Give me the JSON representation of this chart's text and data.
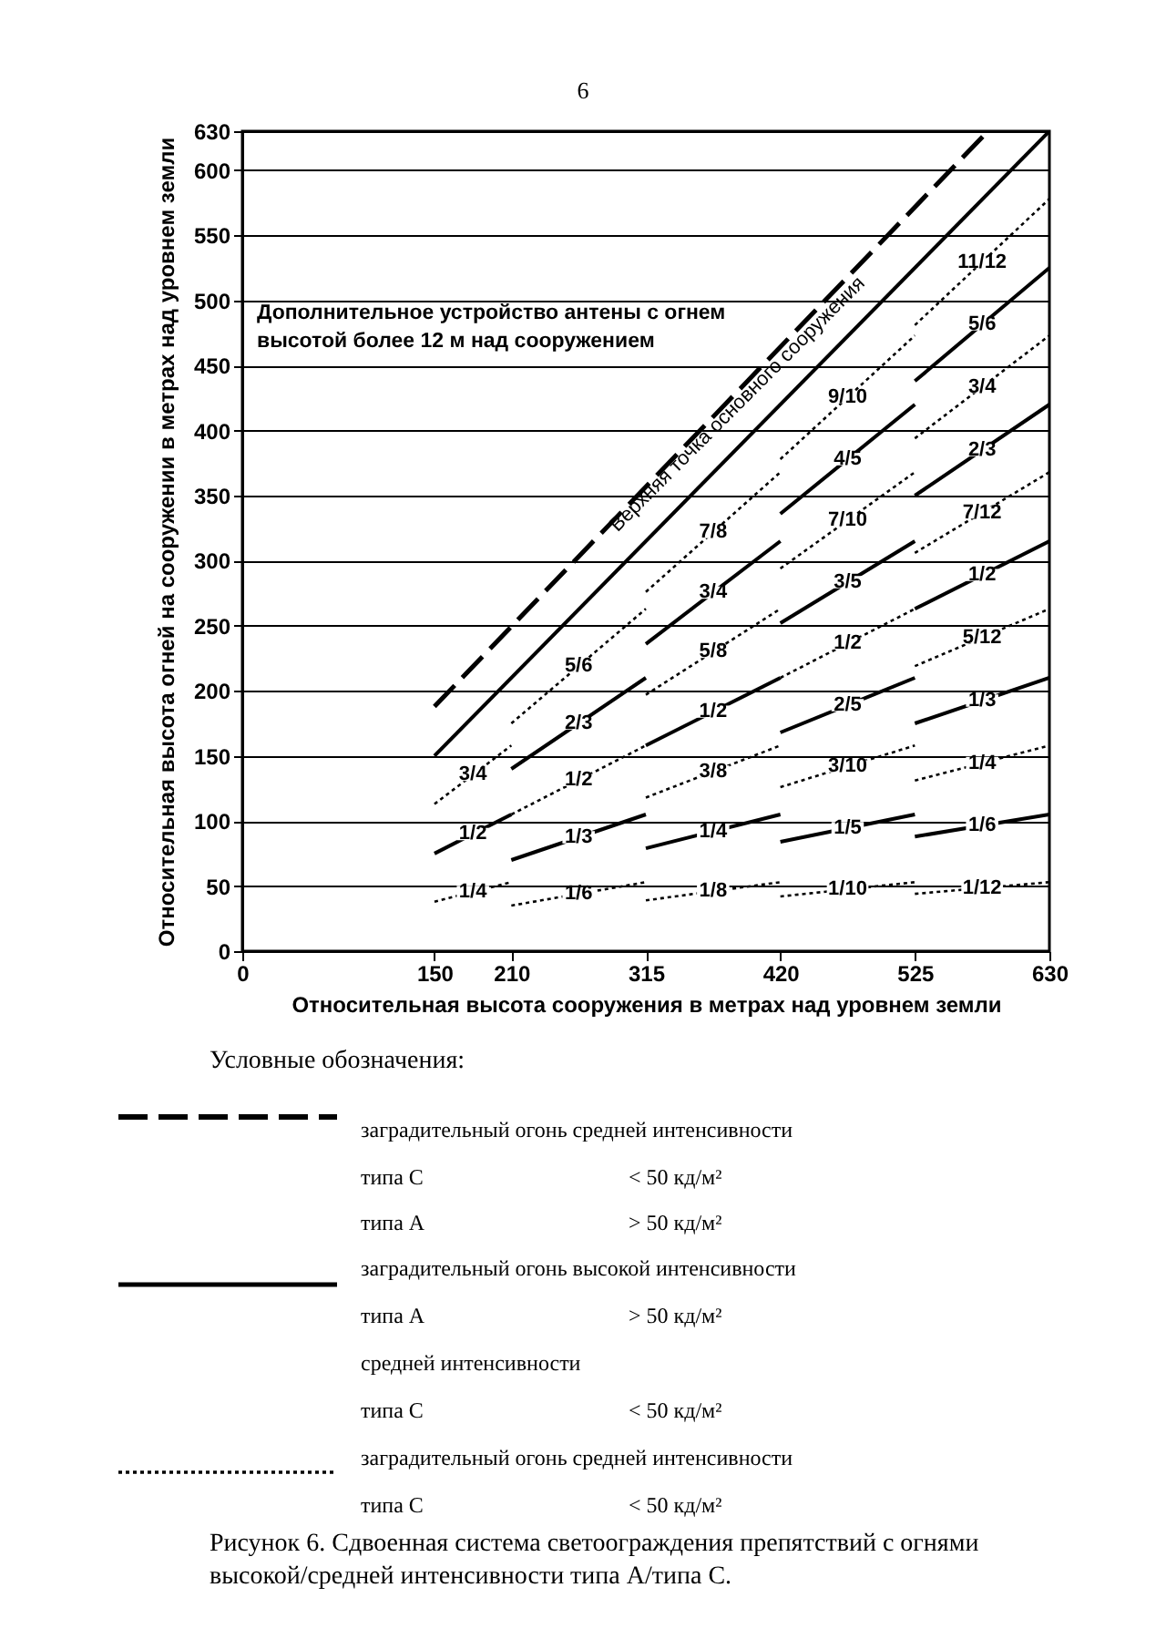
{
  "chart_data": {
    "type": "line",
    "xlabel": "Относительная высота сооружения в метрах над уровнем земли",
    "ylabel": "Относительная высота огней на сооружении в метрах над уровнем земли",
    "xlim": [
      0,
      630
    ],
    "ylim": [
      0,
      630
    ],
    "xticks": [
      0,
      150,
      210,
      315,
      420,
      525,
      630
    ],
    "yticks": [
      0,
      50,
      100,
      150,
      200,
      250,
      300,
      350,
      400,
      450,
      500,
      550,
      600,
      630
    ],
    "grid": "y",
    "legend": "bottom",
    "series": [
      {
        "color": "#000000",
        "line_style": "dashed",
        "x": [
          150,
          582
        ],
        "values": [
          188,
          630
        ]
      },
      {
        "color": "#000000",
        "line_style": "solid",
        "x": [
          150,
          630
        ],
        "values": [
          150,
          630
        ]
      },
      {
        "name": "3/4",
        "color": "#000000",
        "line_style": "dotted",
        "x": [
          150,
          210
        ],
        "values": [
          113,
          158
        ]
      },
      {
        "name": "1/2",
        "color": "#000000",
        "line_style": "solid",
        "x": [
          150,
          210
        ],
        "values": [
          75,
          105
        ]
      },
      {
        "name": "1/4",
        "color": "#000000",
        "line_style": "dotted",
        "x": [
          150,
          210
        ],
        "values": [
          38,
          53
        ]
      },
      {
        "name": "5/6",
        "color": "#000000",
        "line_style": "dotted",
        "x": [
          210,
          315
        ],
        "values": [
          175,
          263
        ]
      },
      {
        "name": "2/3",
        "color": "#000000",
        "line_style": "solid",
        "x": [
          210,
          315
        ],
        "values": [
          140,
          210
        ]
      },
      {
        "name": "1/2",
        "color": "#000000",
        "line_style": "dotted",
        "x": [
          210,
          315
        ],
        "values": [
          105,
          158
        ]
      },
      {
        "name": "1/3",
        "color": "#000000",
        "line_style": "solid",
        "x": [
          210,
          315
        ],
        "values": [
          70,
          105
        ]
      },
      {
        "name": "1/6",
        "color": "#000000",
        "line_style": "dotted",
        "x": [
          210,
          315
        ],
        "values": [
          35,
          53
        ]
      },
      {
        "name": "7/8",
        "color": "#000000",
        "line_style": "dotted",
        "x": [
          315,
          420
        ],
        "values": [
          276,
          368
        ]
      },
      {
        "name": "3/4",
        "color": "#000000",
        "line_style": "solid",
        "x": [
          315,
          420
        ],
        "values": [
          236,
          315
        ]
      },
      {
        "name": "5/8",
        "color": "#000000",
        "line_style": "dotted",
        "x": [
          315,
          420
        ],
        "values": [
          197,
          263
        ]
      },
      {
        "name": "1/2",
        "color": "#000000",
        "line_style": "solid",
        "x": [
          315,
          420
        ],
        "values": [
          158,
          210
        ]
      },
      {
        "name": "3/8",
        "color": "#000000",
        "line_style": "dotted",
        "x": [
          315,
          420
        ],
        "values": [
          118,
          158
        ]
      },
      {
        "name": "1/4",
        "color": "#000000",
        "line_style": "solid",
        "x": [
          315,
          420
        ],
        "values": [
          79,
          105
        ]
      },
      {
        "name": "1/8",
        "color": "#000000",
        "line_style": "dotted",
        "x": [
          315,
          420
        ],
        "values": [
          39,
          53
        ]
      },
      {
        "name": "9/10",
        "color": "#000000",
        "line_style": "dotted",
        "x": [
          420,
          525
        ],
        "values": [
          378,
          473
        ]
      },
      {
        "name": "4/5",
        "color": "#000000",
        "line_style": "solid",
        "x": [
          420,
          525
        ],
        "values": [
          336,
          420
        ]
      },
      {
        "name": "7/10",
        "color": "#000000",
        "line_style": "dotted",
        "x": [
          420,
          525
        ],
        "values": [
          294,
          368
        ]
      },
      {
        "name": "3/5",
        "color": "#000000",
        "line_style": "solid",
        "x": [
          420,
          525
        ],
        "values": [
          252,
          315
        ]
      },
      {
        "name": "1/2",
        "color": "#000000",
        "line_style": "dotted",
        "x": [
          420,
          525
        ],
        "values": [
          210,
          263
        ]
      },
      {
        "name": "2/5",
        "color": "#000000",
        "line_style": "solid",
        "x": [
          420,
          525
        ],
        "values": [
          168,
          210
        ]
      },
      {
        "name": "3/10",
        "color": "#000000",
        "line_style": "dotted",
        "x": [
          420,
          525
        ],
        "values": [
          126,
          158
        ]
      },
      {
        "name": "1/5",
        "color": "#000000",
        "line_style": "solid",
        "x": [
          420,
          525
        ],
        "values": [
          84,
          105
        ]
      },
      {
        "name": "1/10",
        "color": "#000000",
        "line_style": "dotted",
        "x": [
          420,
          525
        ],
        "values": [
          42,
          53
        ]
      },
      {
        "name": "11/12",
        "color": "#000000",
        "line_style": "dotted",
        "x": [
          525,
          630
        ],
        "values": [
          481,
          578
        ]
      },
      {
        "name": "5/6",
        "color": "#000000",
        "line_style": "solid",
        "x": [
          525,
          630
        ],
        "values": [
          438,
          525
        ]
      },
      {
        "name": "3/4",
        "color": "#000000",
        "line_style": "dotted",
        "x": [
          525,
          630
        ],
        "values": [
          394,
          473
        ]
      },
      {
        "name": "2/3",
        "color": "#000000",
        "line_style": "solid",
        "x": [
          525,
          630
        ],
        "values": [
          350,
          420
        ]
      },
      {
        "name": "7/12",
        "color": "#000000",
        "line_style": "dotted",
        "x": [
          525,
          630
        ],
        "values": [
          306,
          368
        ]
      },
      {
        "name": "1/2",
        "color": "#000000",
        "line_style": "solid",
        "x": [
          525,
          630
        ],
        "values": [
          263,
          315
        ]
      },
      {
        "name": "5/12",
        "color": "#000000",
        "line_style": "dotted",
        "x": [
          525,
          630
        ],
        "values": [
          219,
          263
        ]
      },
      {
        "name": "1/3",
        "color": "#000000",
        "line_style": "solid",
        "x": [
          525,
          630
        ],
        "values": [
          175,
          210
        ]
      },
      {
        "name": "1/4",
        "color": "#000000",
        "line_style": "dotted",
        "x": [
          525,
          630
        ],
        "values": [
          131,
          158
        ]
      },
      {
        "name": "1/6",
        "color": "#000000",
        "line_style": "solid",
        "x": [
          525,
          630
        ],
        "values": [
          88,
          105
        ]
      },
      {
        "name": "1/12",
        "color": "#000000",
        "line_style": "dotted",
        "x": [
          525,
          630
        ],
        "values": [
          44,
          53
        ]
      }
    ],
    "annotations": [
      "6",
      "Дополнительное устройство антены с огнем высотой более 12 м над сооружением",
      "Верхняя точка основного сооружения",
      "Условные обозначения:",
      "заградительный огонь средней интенсивности",
      "типа С",
      "< 50 кд/м²",
      "типа А",
      "> 50 кд/м²",
      "заградительный огонь высокой интенсивности",
      "типа А",
      "> 50 кд/м²",
      "средней интенсивности",
      "типа С",
      "< 50 кд/м²",
      "заградительный огонь средней интенсивности",
      "типа С",
      "< 50 кд/м²",
      "Рисунок 6. Сдвоенная система светоограждения препятствий с огнями высокой/средней интенсивности типа А/типа С."
    ]
  }
}
